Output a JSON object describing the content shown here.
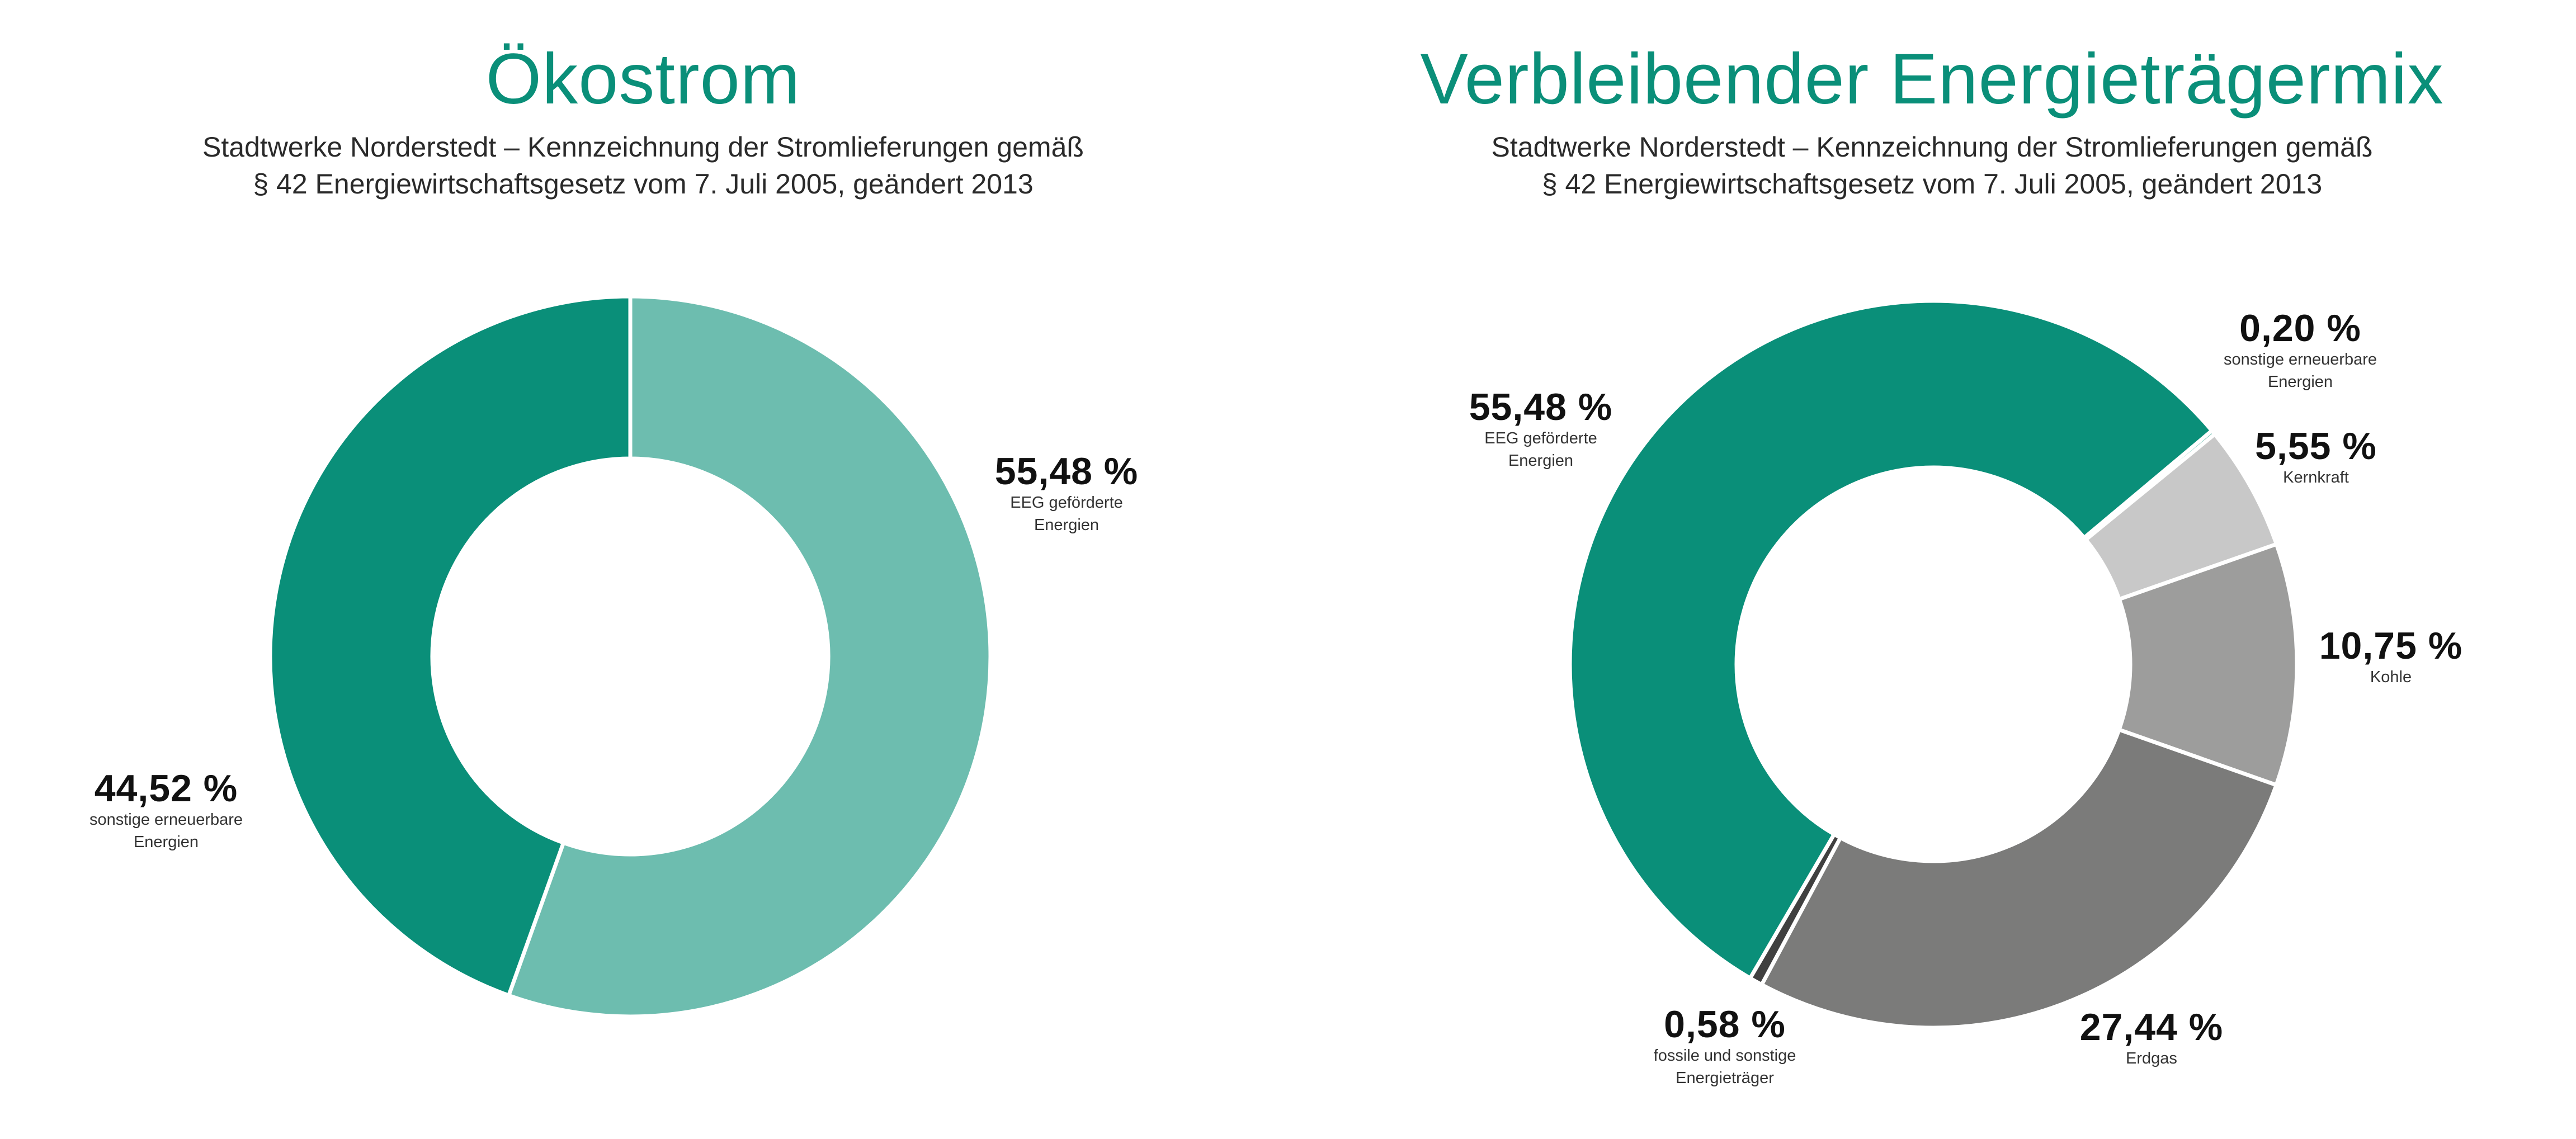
{
  "chart_data": [
    {
      "type": "pie",
      "title": "Ökostrom",
      "subtitle_lines": [
        "Stadtwerke Norderstedt – Kennzeichnung der Stromlieferungen gemäß",
        "§ 42 Energiewirtschaftsgesetz vom 7. Juli 2005, geändert 2013"
      ],
      "slices": [
        {
          "label_lines": [
            "EEG geförderte",
            "Energien"
          ],
          "value": 55.48,
          "display": "55,48 %",
          "color": "#6dbdaf"
        },
        {
          "label_lines": [
            "sonstige erneuerbare",
            "Energien"
          ],
          "value": 44.52,
          "display": "44,52 %",
          "color": "#0a8f79"
        }
      ]
    },
    {
      "type": "pie",
      "title": "Verbleibender Energieträgermix",
      "subtitle_lines": [
        "Stadtwerke Norderstedt – Kennzeichnung der Stromlieferungen gemäß",
        "§ 42 Energiewirtschaftsgesetz vom 7. Juli 2005, geändert 2013"
      ],
      "slices": [
        {
          "label_lines": [
            "sonstige erneuerbare",
            "Energien"
          ],
          "value": 0.2,
          "display": "0,20 %",
          "color": "#6dbdaf"
        },
        {
          "label_lines": [
            "Kernkraft"
          ],
          "value": 5.55,
          "display": "5,55 %",
          "color": "#c8c8c8"
        },
        {
          "label_lines": [
            "Kohle"
          ],
          "value": 10.75,
          "display": "10,75 %",
          "color": "#9d9d9c"
        },
        {
          "label_lines": [
            "Erdgas"
          ],
          "value": 27.44,
          "display": "27,44 %",
          "color": "#7b7b7a"
        },
        {
          "label_lines": [
            "fossile und sonstige",
            "Energieträger"
          ],
          "value": 0.58,
          "display": "0,58 %",
          "color": "#404040"
        },
        {
          "label_lines": [
            "EEG geförderte",
            "Energien"
          ],
          "value": 55.48,
          "display": "55,48 %",
          "color": "#0a8f79"
        }
      ]
    }
  ]
}
